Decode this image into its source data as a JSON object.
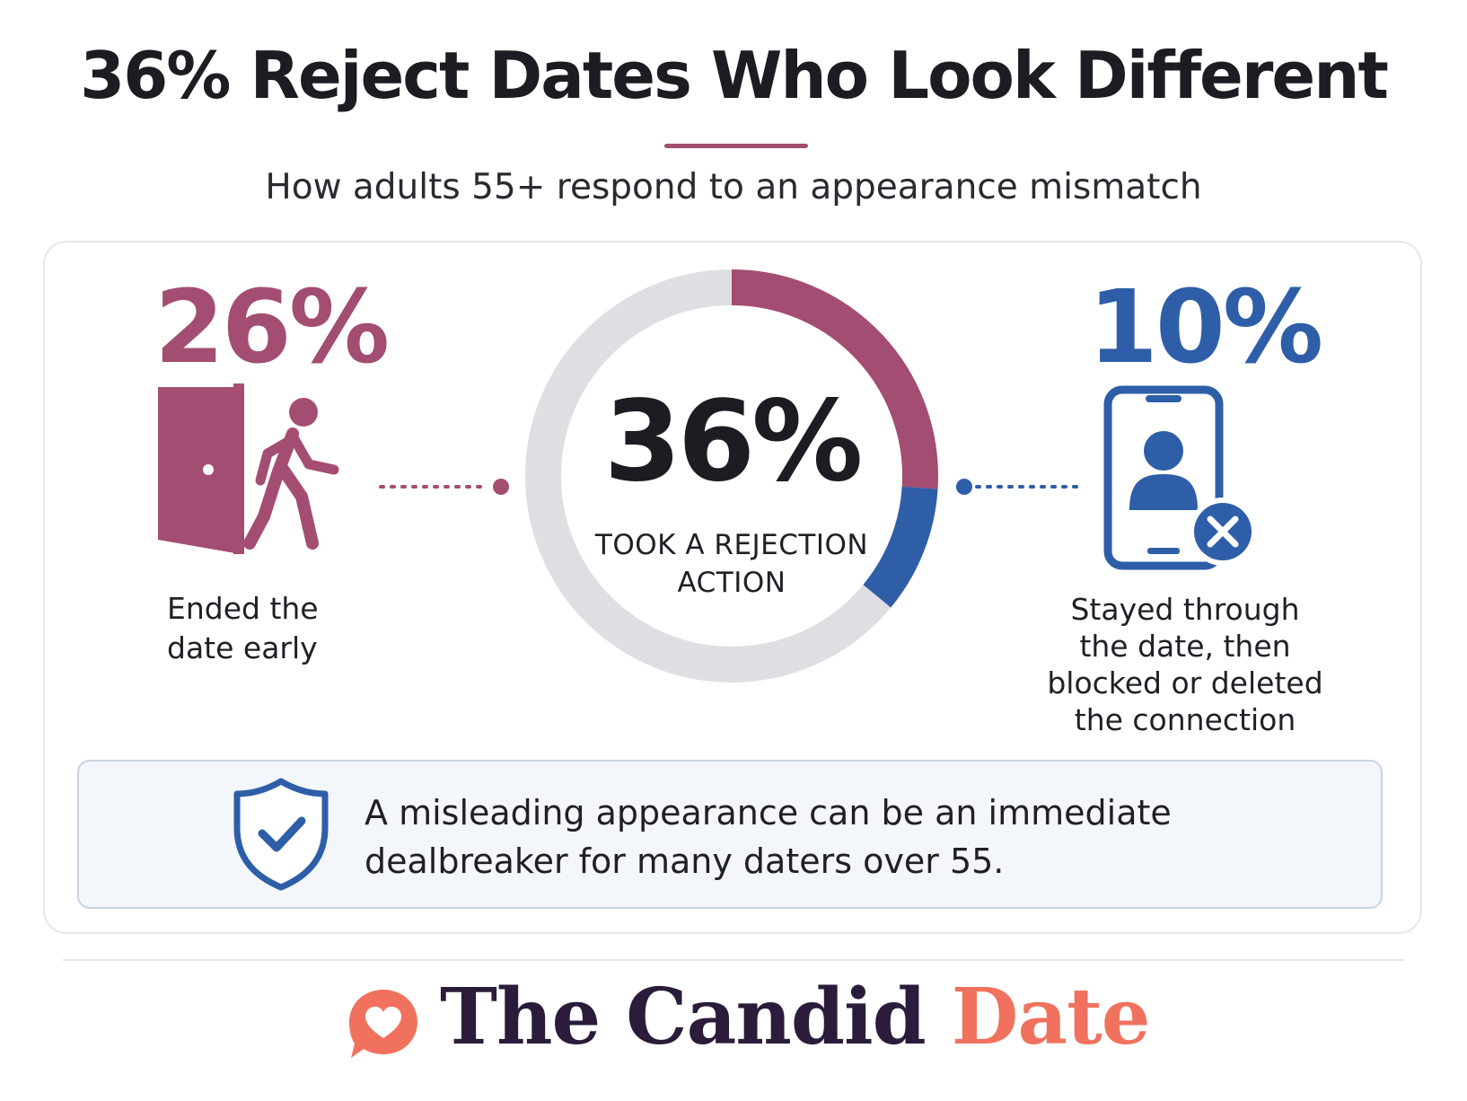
{
  "header": {
    "title": "36% Reject Dates Who Look Different",
    "subtitle": "How adults 55+ respond to an appearance mismatch"
  },
  "chart_data": {
    "type": "pie",
    "total_label": "36%",
    "center_caption": "TOOK A REJECTION ACTION",
    "slices": [
      {
        "label": "Ended the date early",
        "value": 26,
        "display": "26%",
        "color": "#a44d72"
      },
      {
        "label": "Stayed through the date, then blocked or deleted the connection",
        "value": 10,
        "display": "10%",
        "color": "#2e5ea8"
      },
      {
        "label": "",
        "value": 64,
        "color": "#dedfe3"
      }
    ]
  },
  "left_stat": {
    "value": "26%",
    "desc_lines": [
      "Ended the",
      "date early"
    ],
    "icon": "door-exit-icon"
  },
  "right_stat": {
    "value": "10%",
    "desc_lines": [
      "Stayed through",
      "the date, then",
      "blocked or deleted",
      "the connection"
    ],
    "icon": "phone-block-icon"
  },
  "callout": {
    "icon": "shield-check-icon",
    "lines": [
      "A misleading appearance can be an immediate",
      "dealbreaker for many daters over 55."
    ]
  },
  "brand": {
    "part1": "The Candid",
    "part2": "Date",
    "icon": "heart-bubble-icon"
  },
  "colors": {
    "accent_pink": "#a44d72",
    "accent_blue": "#2e5ea8",
    "track_gray": "#dedfe3",
    "brand_coral": "#f0725e",
    "brand_dark": "#2a1c3a"
  }
}
